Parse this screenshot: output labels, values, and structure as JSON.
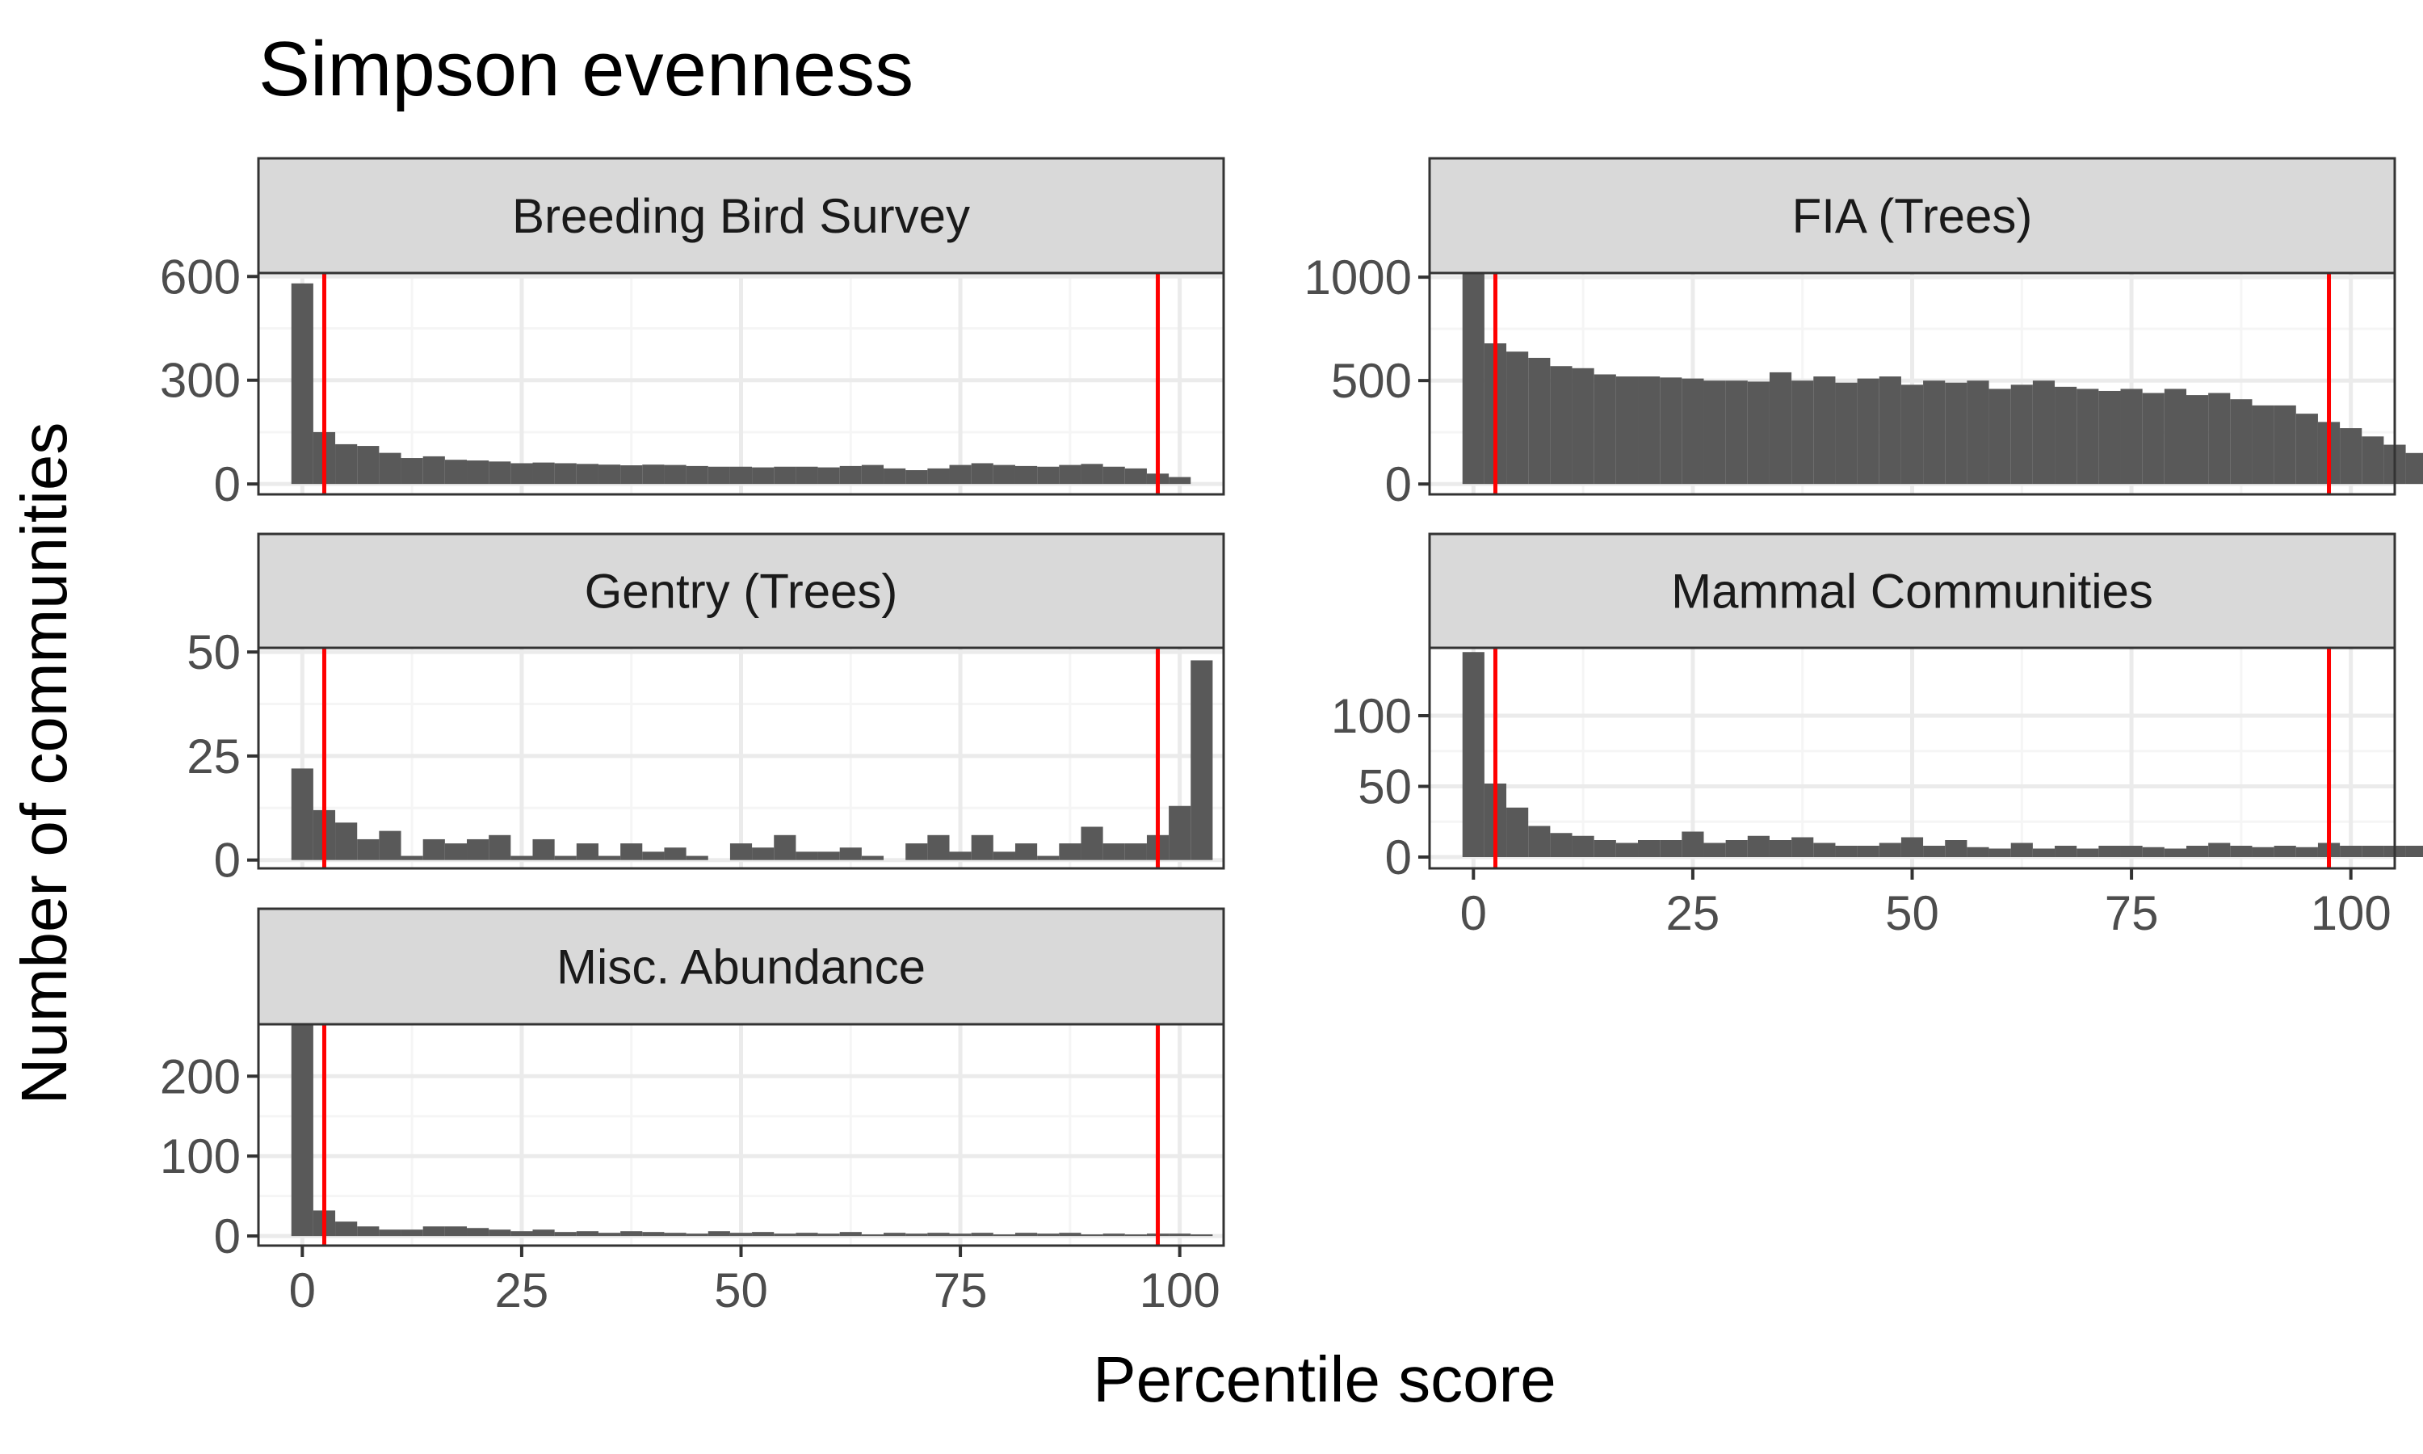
{
  "chart_data": {
    "type": "bar",
    "title": "Simpson evenness",
    "xlabel": "Percentile score",
    "ylabel": "Number of communities",
    "grid": true,
    "bin_width": 2.5,
    "x_ticks": [
      0,
      25,
      50,
      75,
      100
    ],
    "xlim": [
      -5,
      105
    ],
    "reference_lines": [
      2.5,
      97.5
    ],
    "colors": {
      "bar": "#595959",
      "reference_line": "#ff0000",
      "panel_border": "#333333",
      "strip_fill": "#d9d9d9",
      "grid_major": "#ebebeb",
      "grid_minor": "#f5f5f5"
    },
    "panels": [
      {
        "name": "Breeding Bird Survey",
        "y_ticks": [
          0,
          300,
          600
        ],
        "ylim": [
          -30,
          610
        ],
        "values": [
          580,
          150,
          115,
          110,
          90,
          75,
          80,
          70,
          68,
          65,
          60,
          62,
          60,
          58,
          56,
          54,
          56,
          55,
          52,
          50,
          50,
          48,
          50,
          50,
          48,
          52,
          55,
          45,
          40,
          45,
          55,
          60,
          55,
          52,
          50,
          55,
          58,
          50,
          45,
          30,
          20
        ]
      },
      {
        "name": "FIA (Trees)",
        "y_ticks": [
          0,
          500,
          1000
        ],
        "ylim": [
          -50,
          1020
        ],
        "values": [
          1020,
          680,
          640,
          610,
          570,
          560,
          530,
          520,
          520,
          515,
          510,
          500,
          500,
          495,
          540,
          500,
          520,
          490,
          510,
          520,
          480,
          500,
          490,
          500,
          460,
          480,
          500,
          470,
          460,
          450,
          460,
          440,
          460,
          430,
          440,
          410,
          380,
          380,
          340,
          300,
          270,
          230,
          190,
          150,
          90,
          20
        ]
      },
      {
        "name": "Gentry (Trees)",
        "y_ticks": [
          0,
          25,
          50
        ],
        "ylim": [
          -2,
          51
        ],
        "values": [
          22,
          12,
          9,
          5,
          7,
          1,
          5,
          4,
          5,
          6,
          1,
          5,
          1,
          4,
          1,
          4,
          2,
          3,
          1,
          0,
          4,
          3,
          6,
          2,
          2,
          3,
          1,
          0,
          4,
          6,
          2,
          6,
          2,
          4,
          1,
          4,
          8,
          4,
          4,
          6,
          13,
          48
        ]
      },
      {
        "name": "Mammal Communities",
        "y_ticks": [
          0,
          50,
          100
        ],
        "ylim": [
          -8,
          148
        ],
        "values": [
          145,
          52,
          35,
          22,
          17,
          15,
          12,
          10,
          12,
          12,
          18,
          10,
          12,
          15,
          12,
          14,
          10,
          8,
          8,
          10,
          14,
          8,
          12,
          7,
          6,
          10,
          6,
          8,
          6,
          8,
          8,
          7,
          6,
          8,
          10,
          8,
          7,
          8,
          7,
          10,
          8,
          8,
          8,
          8,
          6,
          3,
          4,
          4,
          2,
          4,
          5,
          5
        ]
      },
      {
        "name": "Misc. Abundance",
        "y_ticks": [
          0,
          100,
          200
        ],
        "ylim": [
          -12,
          265
        ],
        "values": [
          265,
          32,
          18,
          12,
          8,
          8,
          12,
          12,
          10,
          8,
          6,
          8,
          5,
          6,
          4,
          6,
          5,
          4,
          3,
          6,
          4,
          5,
          3,
          4,
          3,
          5,
          2,
          4,
          3,
          4,
          3,
          4,
          2,
          4,
          3,
          4,
          2,
          3,
          2,
          3,
          3,
          2
        ]
      }
    ]
  }
}
